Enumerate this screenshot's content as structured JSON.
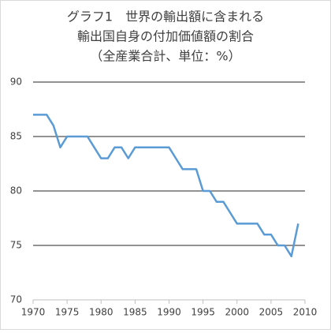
{
  "chart_data": {
    "type": "line",
    "title": [
      "グラフ1　世界の輸出額に含まれる",
      "輸出国自身の付加価値額の割合",
      "（全産業合計、単位：%）"
    ],
    "x": [
      1970,
      1971,
      1972,
      1973,
      1974,
      1975,
      1976,
      1977,
      1978,
      1979,
      1980,
      1981,
      1982,
      1983,
      1984,
      1985,
      1986,
      1987,
      1988,
      1989,
      1990,
      1991,
      1992,
      1993,
      1994,
      1995,
      1996,
      1997,
      1998,
      1999,
      2000,
      2001,
      2002,
      2003,
      2004,
      2005,
      2006,
      2007,
      2008,
      2009
    ],
    "values": [
      87,
      87,
      87,
      86,
      84,
      85,
      85,
      85,
      85,
      84,
      83,
      83,
      84,
      84,
      83,
      84,
      84,
      84,
      84,
      84,
      84,
      83,
      82,
      82,
      82,
      80,
      80,
      79,
      79,
      78,
      77,
      77,
      77,
      77,
      76,
      76,
      75,
      75,
      74,
      77
    ],
    "color": "#5b9bd5",
    "xlim": [
      1970,
      2010
    ],
    "xticks": [
      1970,
      1975,
      1980,
      1985,
      1990,
      1995,
      2000,
      2005,
      2010
    ],
    "ylim": [
      70,
      90
    ],
    "yticks": [
      70,
      75,
      80,
      85,
      90
    ],
    "grid": true
  }
}
